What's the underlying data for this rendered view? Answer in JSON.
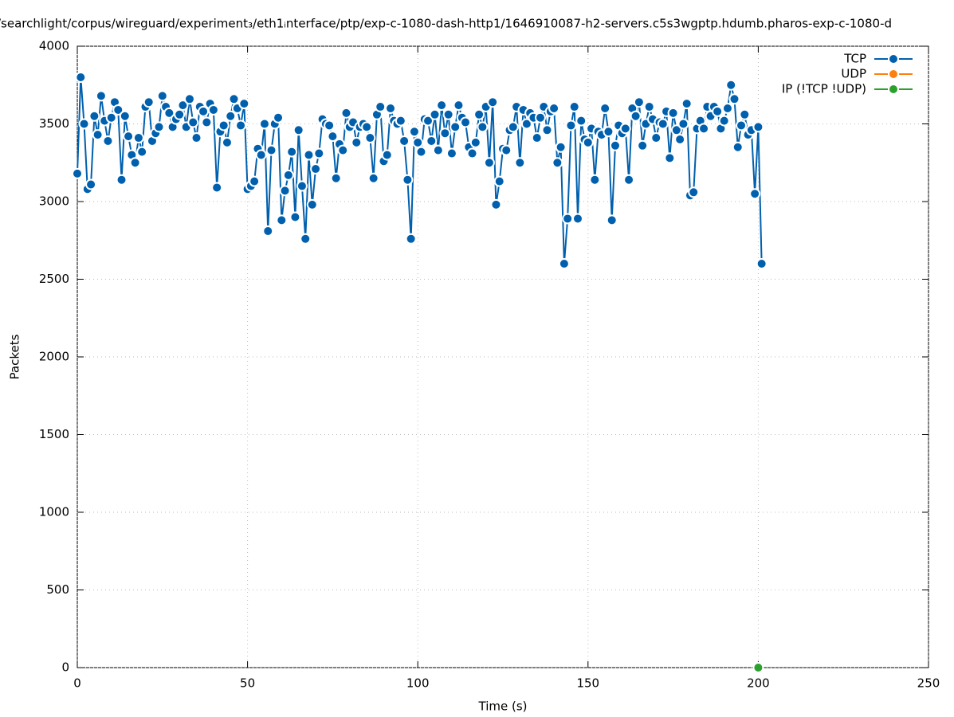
{
  "chart_data": {
    "type": "line",
    "title": "/searchlight/corpus/wireguard/experiment₃/eth1ᵢnterface/ptp/exp-c-1080-dash-http1/1646910087-h2-servers.c5s3wgptp.hdumb.pharos-exp-c-1080-d",
    "x_label": "Time (s)",
    "y_label": "Packets",
    "xlim": [
      0,
      250
    ],
    "xticks": [
      0,
      50,
      100,
      150,
      200,
      250
    ],
    "ylim": [
      0,
      4000
    ],
    "yticks": [
      0,
      500,
      1000,
      1500,
      2000,
      2500,
      3000,
      3500,
      4000
    ],
    "grid": true,
    "legend": "top-right",
    "series": [
      {
        "name": "TCP",
        "color": "#0060ad",
        "x": [
          0,
          1,
          2,
          3,
          4,
          5,
          6,
          7,
          8,
          9,
          10,
          11,
          12,
          13,
          14,
          15,
          16,
          17,
          18,
          19,
          20,
          21,
          22,
          23,
          24,
          25,
          26,
          27,
          28,
          29,
          30,
          31,
          32,
          33,
          34,
          35,
          36,
          37,
          38,
          39,
          40,
          41,
          42,
          43,
          44,
          45,
          46,
          47,
          48,
          49,
          50,
          51,
          52,
          53,
          54,
          55,
          56,
          57,
          58,
          59,
          60,
          61,
          62,
          63,
          64,
          65,
          66,
          67,
          68,
          69,
          70,
          71,
          72,
          73,
          74,
          75,
          76,
          77,
          78,
          79,
          80,
          81,
          82,
          83,
          84,
          85,
          86,
          87,
          88,
          89,
          90,
          91,
          92,
          93,
          94,
          95,
          96,
          97,
          98,
          99,
          100,
          101,
          102,
          103,
          104,
          105,
          106,
          107,
          108,
          109,
          110,
          111,
          112,
          113,
          114,
          115,
          116,
          117,
          118,
          119,
          120,
          121,
          122,
          123,
          124,
          125,
          126,
          127,
          128,
          129,
          130,
          131,
          132,
          133,
          134,
          135,
          136,
          137,
          138,
          139,
          140,
          141,
          142,
          143,
          144,
          145,
          146,
          147,
          148,
          149,
          150,
          151,
          152,
          153,
          154,
          155,
          156,
          157,
          158,
          159,
          160,
          161,
          162,
          163,
          164,
          165,
          166,
          167,
          168,
          169,
          170,
          171,
          172,
          173,
          174,
          175,
          176,
          177,
          178,
          179,
          180,
          181,
          182,
          183,
          184,
          185,
          186,
          187,
          188,
          189,
          190,
          191,
          192,
          193,
          194,
          195,
          196,
          197,
          198,
          199,
          200,
          201
        ],
        "values": [
          3180,
          3800,
          3500,
          3080,
          3110,
          3550,
          3430,
          3680,
          3520,
          3390,
          3540,
          3640,
          3590,
          3140,
          3550,
          3420,
          3300,
          3250,
          3410,
          3320,
          3610,
          3640,
          3390,
          3440,
          3480,
          3680,
          3610,
          3570,
          3480,
          3530,
          3560,
          3620,
          3480,
          3660,
          3510,
          3410,
          3610,
          3580,
          3510,
          3630,
          3590,
          3090,
          3450,
          3490,
          3380,
          3550,
          3660,
          3600,
          3490,
          3630,
          3080,
          3100,
          3130,
          3340,
          3300,
          3500,
          2810,
          3330,
          3500,
          3540,
          2880,
          3070,
          3170,
          3320,
          2900,
          3460,
          3100,
          2760,
          3300,
          2980,
          3210,
          3310,
          3530,
          3500,
          3490,
          3420,
          3150,
          3370,
          3330,
          3570,
          3480,
          3510,
          3380,
          3480,
          3500,
          3480,
          3410,
          3150,
          3560,
          3610,
          3260,
          3300,
          3600,
          3520,
          3500,
          3520,
          3390,
          3140,
          2760,
          3450,
          3380,
          3320,
          3530,
          3520,
          3390,
          3560,
          3330,
          3620,
          3440,
          3560,
          3310,
          3480,
          3620,
          3540,
          3510,
          3350,
          3310,
          3380,
          3560,
          3480,
          3610,
          3250,
          3640,
          2980,
          3130,
          3340,
          3330,
          3460,
          3480,
          3610,
          3250,
          3590,
          3500,
          3570,
          3540,
          3410,
          3540,
          3610,
          3460,
          3580,
          3600,
          3250,
          3350,
          2600,
          2890,
          3490,
          3610,
          2890,
          3520,
          3400,
          3380,
          3470,
          3140,
          3450,
          3430,
          3600,
          3450,
          2880,
          3360,
          3490,
          3440,
          3470,
          3140,
          3600,
          3550,
          3640,
          3360,
          3500,
          3610,
          3530,
          3410,
          3510,
          3500,
          3580,
          3280,
          3570,
          3460,
          3400,
          3500,
          3630,
          3040,
          3060,
          3470,
          3520,
          3470,
          3610,
          3550,
          3610,
          3580,
          3470,
          3520,
          3600,
          3750,
          3660,
          3350,
          3490,
          3560,
          3430,
          3460,
          3050,
          3480,
          2600
        ]
      },
      {
        "name": "UDP",
        "color": "#ff7f0e",
        "x": [
          200
        ],
        "values": [
          0
        ]
      },
      {
        "name": "IP (!TCP  !UDP)",
        "color": "#2ca02c",
        "x": [
          200
        ],
        "values": [
          0
        ]
      }
    ]
  }
}
